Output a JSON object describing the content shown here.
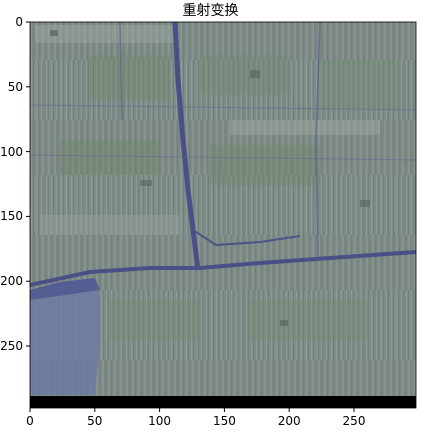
{
  "figure": {
    "title": "重射变换"
  },
  "image": {
    "description_colors": {
      "base": "#7f8a86",
      "green": "#6f8a72",
      "road": "#4a4f86",
      "water": "#5d6a98",
      "black_strip": "#000000"
    }
  },
  "axes": {
    "x_ticks": [
      "0",
      "50",
      "100",
      "150",
      "200",
      "250"
    ],
    "y_ticks": [
      "0",
      "50",
      "100",
      "150",
      "200",
      "250"
    ]
  }
}
